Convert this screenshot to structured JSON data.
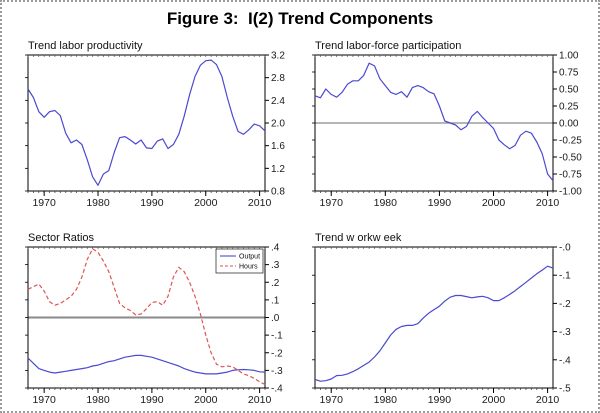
{
  "figure": {
    "title": "Figure 3:  I(2) Trend Components"
  },
  "colors": {
    "line_blue": "#4a4ad2",
    "line_red": "#dd5555",
    "zero_line": "#8a8a8a",
    "frame": "#000000",
    "tick_text": "#1a1a1a",
    "outer_border": "#9a9a9a"
  },
  "chart_data": [
    {
      "id": "productivity",
      "type": "line",
      "title": "Trend labor productivity",
      "x_range": [
        1967,
        2011
      ],
      "x_ticks": [
        {
          "year": 1970,
          "label": "1970"
        },
        {
          "year": 1980,
          "label": "1980"
        },
        {
          "year": 1990,
          "label": "1990"
        },
        {
          "year": 2000,
          "label": "2000"
        },
        {
          "year": 2010,
          "label": "2010"
        }
      ],
      "ylim": [
        0.8,
        3.2
      ],
      "y_ticks": [
        {
          "v": 3.2,
          "label": "3.2"
        },
        {
          "v": 2.8,
          "label": "2.8"
        },
        {
          "v": 2.4,
          "label": "2.4"
        },
        {
          "v": 2.0,
          "label": "2.0"
        },
        {
          "v": 1.6,
          "label": "1.6"
        },
        {
          "v": 1.2,
          "label": "1.2"
        },
        {
          "v": 0.8,
          "label": "0.8"
        }
      ],
      "zero_line": {
        "show": false
      },
      "legend": null,
      "series": [
        {
          "name": "Trend labor productivity",
          "color": "#4a4ad2",
          "dash": null,
          "values": [
            2.6,
            2.45,
            2.2,
            2.1,
            2.2,
            2.22,
            2.13,
            1.82,
            1.65,
            1.7,
            1.62,
            1.35,
            1.05,
            0.9,
            1.1,
            1.16,
            1.48,
            1.74,
            1.76,
            1.7,
            1.63,
            1.7,
            1.56,
            1.55,
            1.68,
            1.72,
            1.55,
            1.62,
            1.8,
            2.12,
            2.5,
            2.82,
            3.02,
            3.1,
            3.11,
            3.03,
            2.82,
            2.45,
            2.12,
            1.85,
            1.8,
            1.88,
            1.98,
            1.95,
            1.86
          ]
        }
      ]
    },
    {
      "id": "participation",
      "type": "line",
      "title": "Trend labor-force participation",
      "x_range": [
        1967,
        2011
      ],
      "x_ticks": [
        {
          "year": 1970,
          "label": "1970"
        },
        {
          "year": 1980,
          "label": "1980"
        },
        {
          "year": 1990,
          "label": "1990"
        },
        {
          "year": 2000,
          "label": "2000"
        },
        {
          "year": 2010,
          "label": "2010"
        }
      ],
      "ylim": [
        -1.0,
        1.0
      ],
      "y_ticks": [
        {
          "v": 1.0,
          "label": "1.00"
        },
        {
          "v": 0.75,
          "label": "0.75"
        },
        {
          "v": 0.5,
          "label": "0.50"
        },
        {
          "v": 0.25,
          "label": "0.25"
        },
        {
          "v": 0.0,
          "label": "0.00"
        },
        {
          "v": -0.25,
          "label": "-0.25"
        },
        {
          "v": -0.5,
          "label": "-0.50"
        },
        {
          "v": -0.75,
          "label": "-0.75"
        },
        {
          "v": -1.0,
          "label": "-1.00"
        }
      ],
      "zero_line": {
        "show": true,
        "width": 1.2
      },
      "legend": null,
      "series": [
        {
          "name": "Trend labor-force participation",
          "color": "#4a4ad2",
          "dash": null,
          "values": [
            0.4,
            0.37,
            0.5,
            0.42,
            0.38,
            0.45,
            0.57,
            0.62,
            0.62,
            0.7,
            0.88,
            0.84,
            0.65,
            0.55,
            0.45,
            0.42,
            0.46,
            0.38,
            0.52,
            0.55,
            0.52,
            0.46,
            0.43,
            0.25,
            0.03,
            0.0,
            -0.03,
            -0.1,
            -0.05,
            0.1,
            0.17,
            0.08,
            0.0,
            -0.08,
            -0.25,
            -0.32,
            -0.38,
            -0.33,
            -0.18,
            -0.12,
            -0.15,
            -0.28,
            -0.45,
            -0.75,
            -0.85
          ]
        }
      ]
    },
    {
      "id": "sectors",
      "type": "line",
      "title": "Sector Ratios",
      "x_range": [
        1967,
        2011
      ],
      "x_ticks": [
        {
          "year": 1970,
          "label": "1970"
        },
        {
          "year": 1980,
          "label": "1980"
        },
        {
          "year": 1990,
          "label": "1990"
        },
        {
          "year": 2000,
          "label": "2000"
        },
        {
          "year": 2010,
          "label": "2010"
        }
      ],
      "ylim": [
        -0.4,
        0.4
      ],
      "y_ticks": [
        {
          "v": 0.4,
          "label": ".4"
        },
        {
          "v": 0.3,
          "label": ".3"
        },
        {
          "v": 0.2,
          "label": ".2"
        },
        {
          "v": 0.1,
          "label": ".1"
        },
        {
          "v": 0.0,
          "label": ".0"
        },
        {
          "v": -0.1,
          "label": "-.1"
        },
        {
          "v": -0.2,
          "label": "-.2"
        },
        {
          "v": -0.3,
          "label": "-.3"
        },
        {
          "v": -0.4,
          "label": "-.4"
        }
      ],
      "zero_line": {
        "show": true,
        "width": 2
      },
      "legend": {
        "entries": [
          {
            "label": "Output",
            "color": "#4a4ad2",
            "dash": null
          },
          {
            "label": "Hours",
            "color": "#dd5555",
            "dash": "3,2"
          }
        ]
      },
      "series": [
        {
          "name": "Output",
          "color": "#4a4ad2",
          "dash": null,
          "values": [
            -0.23,
            -0.26,
            -0.29,
            -0.3,
            -0.31,
            -0.315,
            -0.31,
            -0.305,
            -0.3,
            -0.295,
            -0.29,
            -0.285,
            -0.275,
            -0.27,
            -0.26,
            -0.25,
            -0.245,
            -0.235,
            -0.225,
            -0.22,
            -0.215,
            -0.215,
            -0.22,
            -0.225,
            -0.235,
            -0.245,
            -0.255,
            -0.265,
            -0.275,
            -0.29,
            -0.3,
            -0.31,
            -0.315,
            -0.32,
            -0.32,
            -0.32,
            -0.315,
            -0.31,
            -0.3,
            -0.297,
            -0.295,
            -0.297,
            -0.3,
            -0.308,
            -0.31
          ]
        },
        {
          "name": "Hours",
          "color": "#dd5555",
          "dash": "4,2.5",
          "values": [
            0.16,
            0.175,
            0.19,
            0.15,
            0.09,
            0.07,
            0.08,
            0.1,
            0.12,
            0.16,
            0.23,
            0.33,
            0.39,
            0.37,
            0.32,
            0.26,
            0.17,
            0.08,
            0.055,
            0.04,
            0.015,
            0.02,
            0.05,
            0.085,
            0.09,
            0.07,
            0.12,
            0.23,
            0.285,
            0.26,
            0.2,
            0.12,
            0.02,
            -0.1,
            -0.2,
            -0.265,
            -0.28,
            -0.275,
            -0.28,
            -0.3,
            -0.32,
            -0.33,
            -0.345,
            -0.365,
            -0.38
          ]
        }
      ]
    },
    {
      "id": "workweek",
      "type": "line",
      "title": "Trend w orkw eek",
      "x_range": [
        1967,
        2011
      ],
      "x_ticks": [
        {
          "year": 1970,
          "label": "1970"
        },
        {
          "year": 1980,
          "label": "1980"
        },
        {
          "year": 1990,
          "label": "1990"
        },
        {
          "year": 2000,
          "label": "2000"
        },
        {
          "year": 2010,
          "label": "2010"
        }
      ],
      "ylim": [
        -0.5,
        0.0
      ],
      "y_ticks": [
        {
          "v": 0.0,
          "label": "-.0"
        },
        {
          "v": -0.1,
          "label": "-.1"
        },
        {
          "v": -0.2,
          "label": "-.2"
        },
        {
          "v": -0.3,
          "label": "-.3"
        },
        {
          "v": -0.4,
          "label": "-.4"
        },
        {
          "v": -0.5,
          "label": "-.5"
        }
      ],
      "zero_line": {
        "show": false
      },
      "legend": null,
      "series": [
        {
          "name": "Trend workweek",
          "color": "#4a4ad2",
          "dash": null,
          "values": [
            -0.47,
            -0.476,
            -0.474,
            -0.468,
            -0.456,
            -0.455,
            -0.45,
            -0.442,
            -0.432,
            -0.42,
            -0.408,
            -0.39,
            -0.368,
            -0.34,
            -0.312,
            -0.292,
            -0.282,
            -0.278,
            -0.278,
            -0.272,
            -0.252,
            -0.235,
            -0.222,
            -0.21,
            -0.192,
            -0.178,
            -0.172,
            -0.172,
            -0.176,
            -0.18,
            -0.177,
            -0.175,
            -0.18,
            -0.19,
            -0.19,
            -0.18,
            -0.168,
            -0.155,
            -0.14,
            -0.125,
            -0.11,
            -0.095,
            -0.082,
            -0.068,
            -0.075
          ]
        }
      ]
    }
  ]
}
